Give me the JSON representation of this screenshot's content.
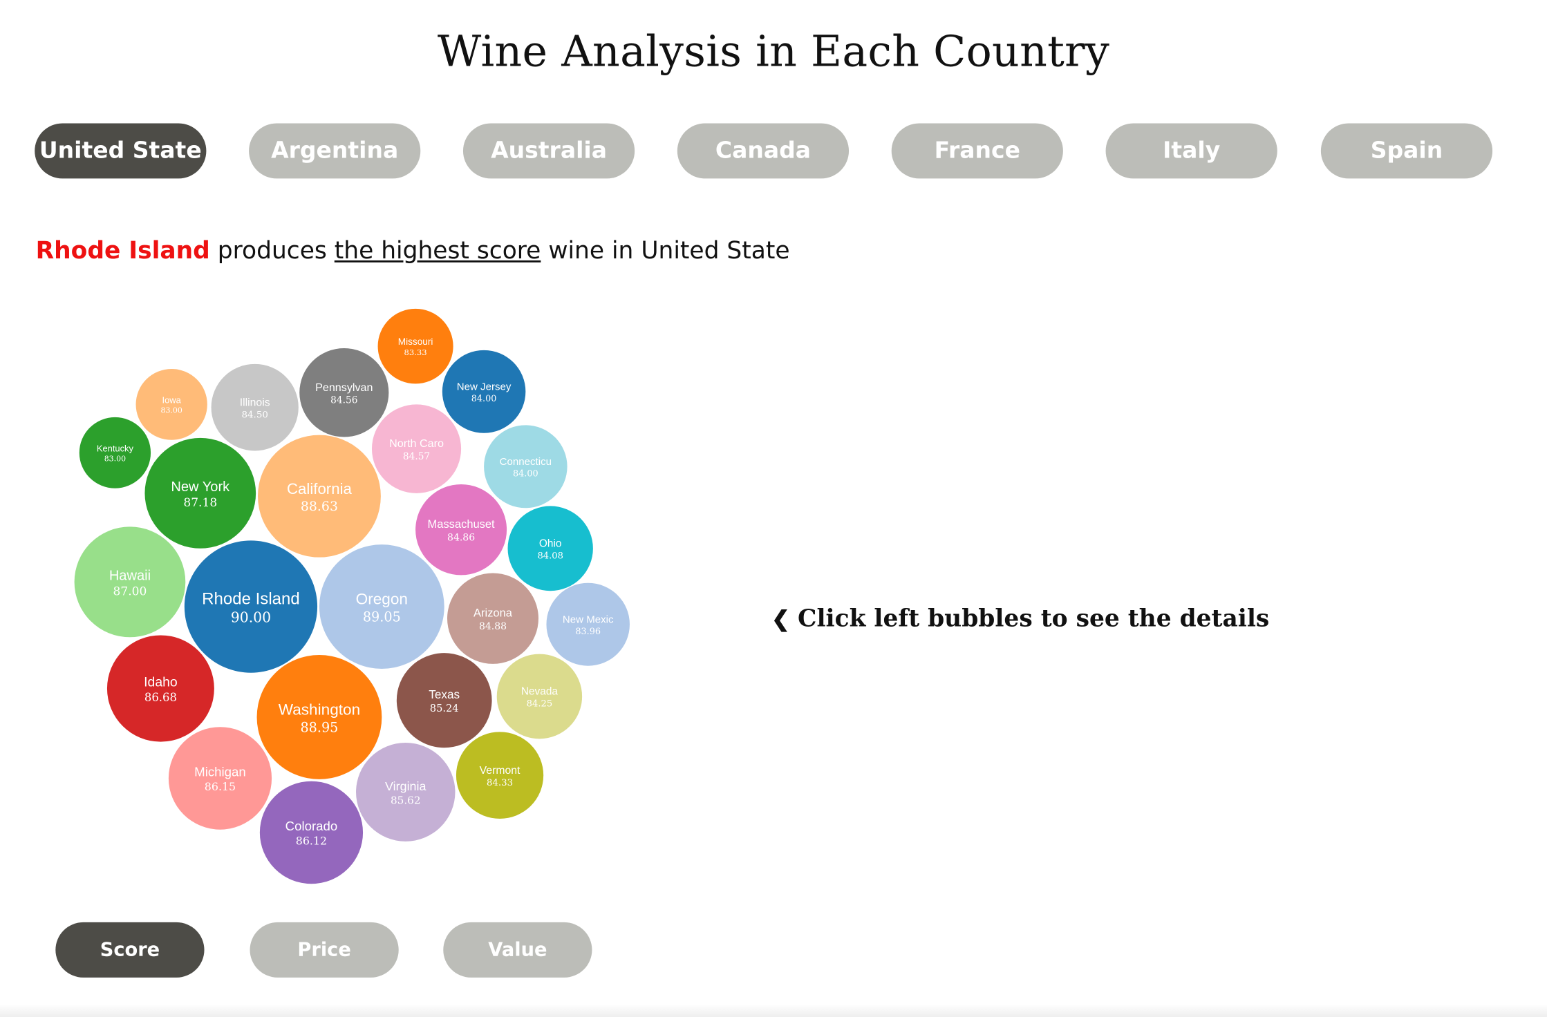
{
  "title": "Wine Analysis in Each Country",
  "countries": [
    "United State",
    "Argentina",
    "Australia",
    "Canada",
    "France",
    "Italy",
    "Spain"
  ],
  "active_country": "United State",
  "headline": {
    "highlight": "Rhode Island",
    "pre": " produces ",
    "underlined": "the highest score",
    "post": " wine in United State"
  },
  "hint": "Click left bubbles to see the details",
  "metrics": [
    "Score",
    "Price",
    "Value"
  ],
  "active_metric": "Score",
  "colors": {
    "active_pill": "#4d4c47",
    "inactive_pill": "#bcbdb8",
    "highlight": "#ee1111"
  },
  "chart_data": {
    "type": "bubble",
    "metric": "Score",
    "points": [
      {
        "label": "Rhode Island",
        "value": "90.00",
        "color": "#1f77b4"
      },
      {
        "label": "Oregon",
        "value": "89.05",
        "color": "#aec7e8"
      },
      {
        "label": "Washington",
        "value": "88.95",
        "color": "#ff7f0e"
      },
      {
        "label": "California",
        "value": "88.63",
        "color": "#ffbb78"
      },
      {
        "label": "New York",
        "value": "87.18",
        "color": "#2ca02c"
      },
      {
        "label": "Hawaii",
        "value": "87.00",
        "color": "#98df8a"
      },
      {
        "label": "Idaho",
        "value": "86.68",
        "color": "#d62728"
      },
      {
        "label": "Michigan",
        "value": "86.15",
        "color": "#ff9896"
      },
      {
        "label": "Colorado",
        "value": "86.12",
        "color": "#9467bd"
      },
      {
        "label": "Virginia",
        "value": "85.62",
        "color": "#c5b0d5"
      },
      {
        "label": "Texas",
        "value": "85.24",
        "color": "#8c564b"
      },
      {
        "label": "Arizona",
        "value": "84.88",
        "color": "#c49c94"
      },
      {
        "label": "Massachuset",
        "value": "84.86",
        "color": "#e377c2"
      },
      {
        "label": "North Caro",
        "value": "84.57",
        "color": "#f7b6d2"
      },
      {
        "label": "Pennsylvan",
        "value": "84.56",
        "color": "#7f7f7f"
      },
      {
        "label": "Illinois",
        "value": "84.50",
        "color": "#c7c7c7"
      },
      {
        "label": "Vermont",
        "value": "84.33",
        "color": "#bcbd22"
      },
      {
        "label": "Nevada",
        "value": "84.25",
        "color": "#dbdb8d"
      },
      {
        "label": "Ohio",
        "value": "84.08",
        "color": "#17becf"
      },
      {
        "label": "Connecticu",
        "value": "84.00",
        "color": "#9edae5"
      },
      {
        "label": "New Jersey",
        "value": "84.00",
        "color": "#1f77b4"
      },
      {
        "label": "New Mexic",
        "value": "83.96",
        "color": "#aec7e8"
      },
      {
        "label": "Missouri",
        "value": "83.33",
        "color": "#ff7f0e"
      },
      {
        "label": "Iowa",
        "value": "83.00",
        "color": "#ffbb78"
      },
      {
        "label": "Kentucky",
        "value": "83.00",
        "color": "#2ca02c"
      }
    ]
  }
}
